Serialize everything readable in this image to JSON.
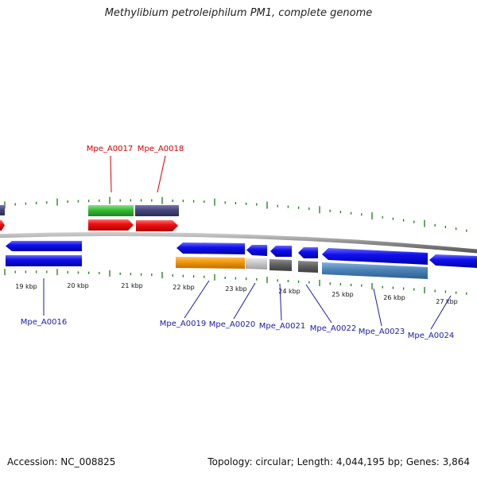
{
  "title": "Methylibium petroleiphilum PM1, complete genome",
  "footer": {
    "accession": "Accession: NC_008825",
    "summary": "Topology: circular; Length: 4,044,195 bp; Genes: 3,864"
  },
  "scale_labels": [
    "19 kbp",
    "20 kbp",
    "21 kbp",
    "22 kbp",
    "23 kbp",
    "24 kbp",
    "25 kbp",
    "26 kbp",
    "27 kbp"
  ],
  "gene_labels_top": [
    "Mpe_A0017",
    "Mpe_A0018"
  ],
  "gene_labels_bottom": [
    "Mpe_A0016",
    "Mpe_A0019",
    "Mpe_A0020",
    "Mpe_A0021",
    "Mpe_A0022",
    "Mpe_A0023",
    "Mpe_A0024"
  ],
  "colors": {
    "forward_label": "#d00000",
    "reverse_label": "#1a1aa8",
    "cds_red": "#ee1111",
    "cds_blue": "#1010ee",
    "green": "#33bb33",
    "slate": "#45457a",
    "orange": "#f0960a",
    "light_gray": "#c8c8c8",
    "dark_gray": "#606060",
    "steel_blue": "#4a82b8",
    "tick": "#1a7a1a",
    "backbone": "#8a8a8a"
  }
}
